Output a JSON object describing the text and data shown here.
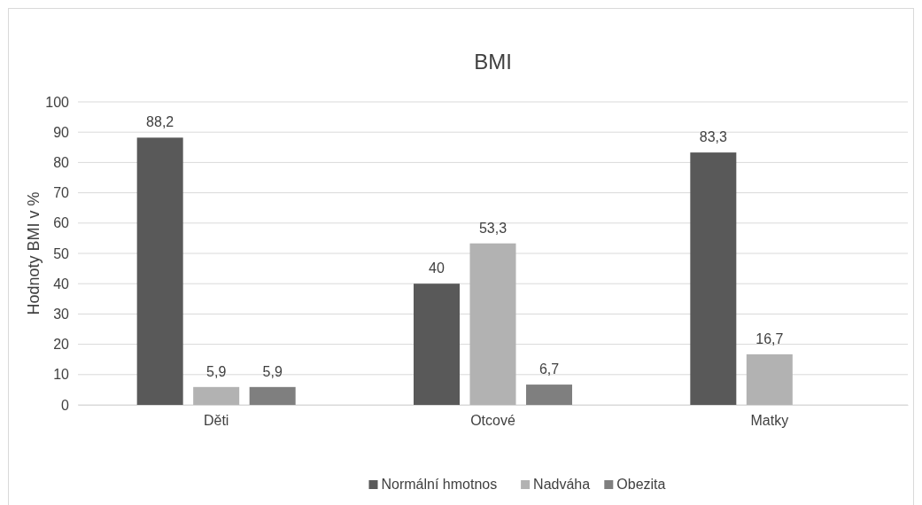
{
  "chart_data": {
    "type": "bar",
    "title": "BMI",
    "ylabel": "Hodnoty BMI v %",
    "categories": [
      "Děti",
      "Otcové",
      "Matky"
    ],
    "series": [
      {
        "name": "Normální hmotnos",
        "color": "#595959",
        "values": [
          88.2,
          40,
          83.3
        ],
        "value_labels": [
          "88,2",
          "40",
          "83,3"
        ]
      },
      {
        "name": "Nadváha",
        "color": "#b2b2b2",
        "values": [
          5.9,
          53.3,
          16.7
        ],
        "value_labels": [
          "5,9",
          "53,3",
          "16,7"
        ]
      },
      {
        "name": "Obezita",
        "color": "#7f7f7f",
        "values": [
          5.9,
          6.7,
          null
        ],
        "value_labels": [
          "5,9",
          "6,7",
          null
        ]
      }
    ],
    "ylim": [
      0,
      100
    ],
    "yticks": [
      0,
      10,
      20,
      30,
      40,
      50,
      60,
      70,
      80,
      90,
      100
    ],
    "grid": "y",
    "legend": "bottom"
  }
}
